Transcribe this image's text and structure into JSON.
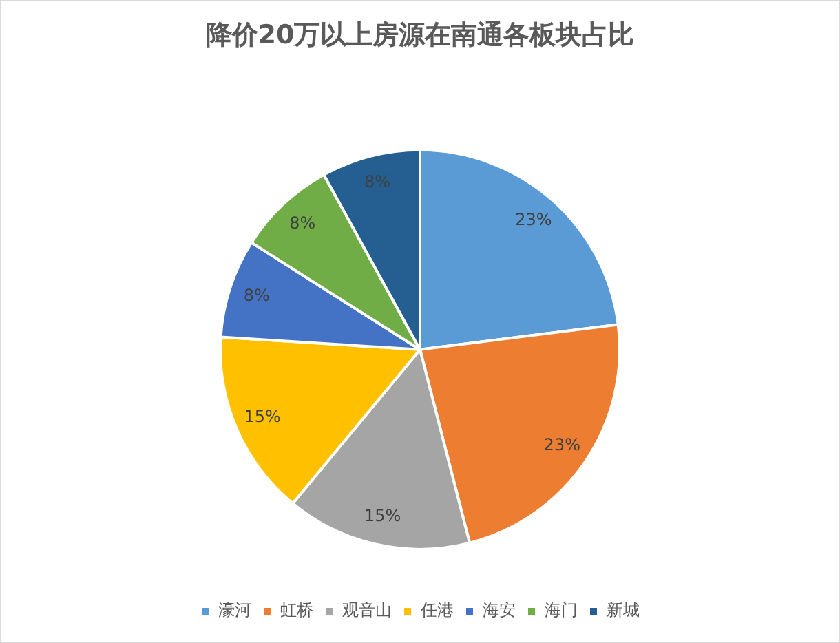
{
  "chart_data": {
    "type": "pie",
    "title": "降价20万以上房源在南通各板块占比",
    "categories": [
      "濠河",
      "虹桥",
      "观音山",
      "任港",
      "海安",
      "海门",
      "新城"
    ],
    "values": [
      23,
      23,
      15,
      15,
      8,
      8,
      8
    ],
    "colors": [
      "#5b9bd5",
      "#ed7d31",
      "#a5a5a5",
      "#ffc000",
      "#4472c4",
      "#70ad47",
      "#255e91"
    ],
    "value_labels": [
      "23%",
      "23%",
      "15%",
      "15%",
      "8%",
      "8%",
      "8%"
    ],
    "legend": "bottom"
  }
}
